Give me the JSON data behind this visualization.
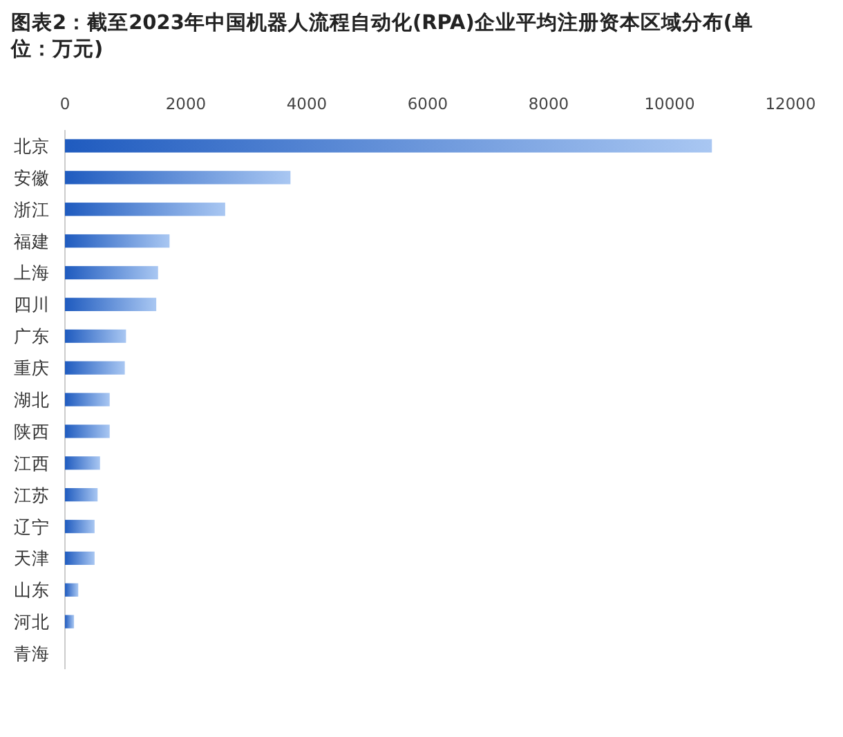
{
  "chart_data": {
    "type": "bar",
    "orientation": "horizontal",
    "title": "图表2：截至2023年中国机器人流程自动化(RPA)企业平均注册资本区域分布(单位：万元)",
    "categories": [
      "北京",
      "安徽",
      "浙江",
      "福建",
      "上海",
      "四川",
      "广东",
      "重庆",
      "湖北",
      "陕西",
      "江西",
      "江苏",
      "辽宁",
      "天津",
      "山东",
      "河北",
      "青海"
    ],
    "values": [
      10700,
      3730,
      2650,
      1730,
      1540,
      1510,
      1010,
      990,
      740,
      740,
      580,
      540,
      490,
      490,
      220,
      150,
      0
    ],
    "color": "#1f5bbf",
    "xlim": [
      0,
      12000
    ],
    "xticks": [
      0,
      2000,
      4000,
      6000,
      8000,
      10000,
      12000
    ]
  }
}
